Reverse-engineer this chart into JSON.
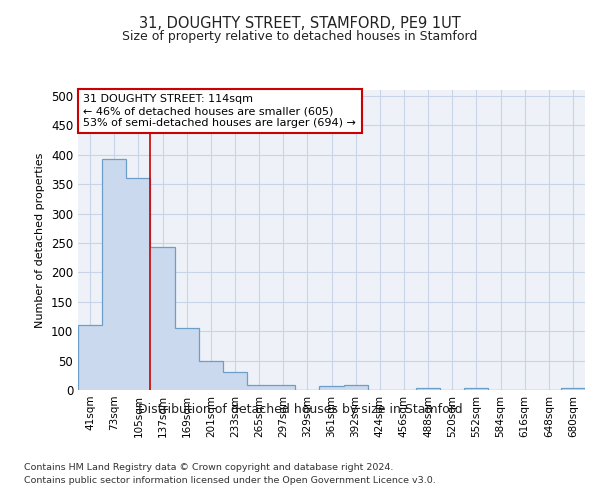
{
  "title": "31, DOUGHTY STREET, STAMFORD, PE9 1UT",
  "subtitle": "Size of property relative to detached houses in Stamford",
  "xlabel": "Distribution of detached houses by size in Stamford",
  "ylabel": "Number of detached properties",
  "categories": [
    "41sqm",
    "73sqm",
    "105sqm",
    "137sqm",
    "169sqm",
    "201sqm",
    "233sqm",
    "265sqm",
    "297sqm",
    "329sqm",
    "361sqm",
    "392sqm",
    "424sqm",
    "456sqm",
    "488sqm",
    "520sqm",
    "552sqm",
    "584sqm",
    "616sqm",
    "648sqm",
    "680sqm"
  ],
  "values": [
    110,
    393,
    360,
    243,
    105,
    50,
    30,
    8,
    8,
    0,
    7,
    8,
    0,
    0,
    3,
    0,
    3,
    0,
    0,
    0,
    3
  ],
  "bar_color": "#cad9ee",
  "bar_edge_color": "#6b9ec8",
  "vline_x": 2,
  "vline_color": "#cc0000",
  "annotation_text": "31 DOUGHTY STREET: 114sqm\n← 46% of detached houses are smaller (605)\n53% of semi-detached houses are larger (694) →",
  "annotation_box_color": "#ffffff",
  "annotation_box_edge": "#cc0000",
  "ylim": [
    0,
    510
  ],
  "yticks": [
    0,
    50,
    100,
    150,
    200,
    250,
    300,
    350,
    400,
    450,
    500
  ],
  "footer_line1": "Contains HM Land Registry data © Crown copyright and database right 2024.",
  "footer_line2": "Contains public sector information licensed under the Open Government Licence v3.0.",
  "background_color": "#ffffff",
  "plot_bg_color": "#eef2f8",
  "grid_color": "#c8d4e8"
}
